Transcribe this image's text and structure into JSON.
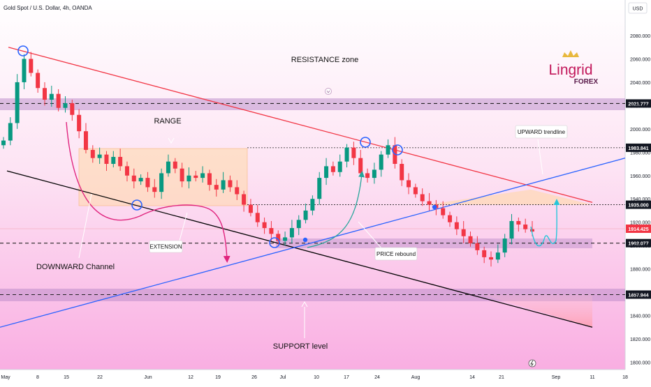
{
  "header": {
    "symbol": "Gold Spot / U.S. Dollar, 4h, OANDA",
    "currency": "USD"
  },
  "logo": {
    "brand": "Lingrid",
    "sub": "FOREX"
  },
  "chart_data": {
    "type": "candlestick",
    "y_range": [
      1795,
      2095
    ],
    "y_ticks": [
      1800,
      1820,
      1840,
      1860,
      1880,
      1900,
      1920,
      1940,
      1960,
      1980,
      2000,
      2020,
      2040,
      2060,
      2080
    ],
    "x_ticks": [
      "May",
      "8",
      "15",
      "22",
      "Jun",
      "12",
      "19",
      "26",
      "Jul",
      "10",
      "17",
      "24",
      "Aug",
      "14",
      "21",
      "Sep",
      "11",
      "18"
    ],
    "grid": false,
    "price_levels": [
      {
        "value": 2021.777,
        "label": "2021.777",
        "style": "dashed"
      },
      {
        "value": 1983.841,
        "label": "1983.841",
        "style": "dotted"
      },
      {
        "value": 1935.0,
        "label": "1935.000",
        "style": "dotted"
      },
      {
        "value": 1914.425,
        "label": "1914.425",
        "style": "current",
        "color": "#f23645"
      },
      {
        "value": 1902.077,
        "label": "1902.077",
        "style": "dashed"
      },
      {
        "value": 1857.944,
        "label": "1857.944",
        "style": "dashed"
      }
    ],
    "annotations": [
      {
        "text": "RESISTANCE zone"
      },
      {
        "text": "RANGE"
      },
      {
        "text": "UPWARD trendline"
      },
      {
        "text": "EXTENSION"
      },
      {
        "text": "DOWNWARD Channel"
      },
      {
        "text": "PRICE rebound"
      },
      {
        "text": "SUPPORT level"
      }
    ],
    "trendlines": [
      {
        "name": "resistance",
        "color": "#f23645",
        "from": [
          "May 2",
          2070
        ],
        "to": [
          "Sep 2",
          1937
        ]
      },
      {
        "name": "channel-bottom",
        "color": "#000000",
        "from": [
          "May 1",
          1964
        ],
        "to": [
          "Sep 2",
          1830
        ]
      },
      {
        "name": "upward",
        "color": "#2962ff",
        "from": [
          "May 1",
          1830
        ],
        "to": [
          "Sep 18",
          1975
        ]
      }
    ],
    "closes": [
      1990,
      2005,
      2040,
      2060,
      2048,
      2035,
      2025,
      2030,
      2018,
      2022,
      2012,
      1998,
      1982,
      1975,
      1978,
      1970,
      1976,
      1968,
      1960,
      1955,
      1958,
      1950,
      1946,
      1962,
      1972,
      1966,
      1955,
      1960,
      1958,
      1962,
      1952,
      1948,
      1956,
      1950,
      1944,
      1935,
      1928,
      1920,
      1915,
      1910,
      1904,
      1907,
      1915,
      1922,
      1930,
      1940,
      1958,
      1968,
      1963,
      1972,
      1984,
      1975,
      1962,
      1958,
      1965,
      1978,
      1986,
      1970,
      1956,
      1950,
      1944,
      1938,
      1935,
      1932,
      1926,
      1920,
      1914,
      1908,
      1902,
      1896,
      1890,
      1888,
      1894,
      1906,
      1921,
      1918,
      1914,
      1912
    ]
  }
}
